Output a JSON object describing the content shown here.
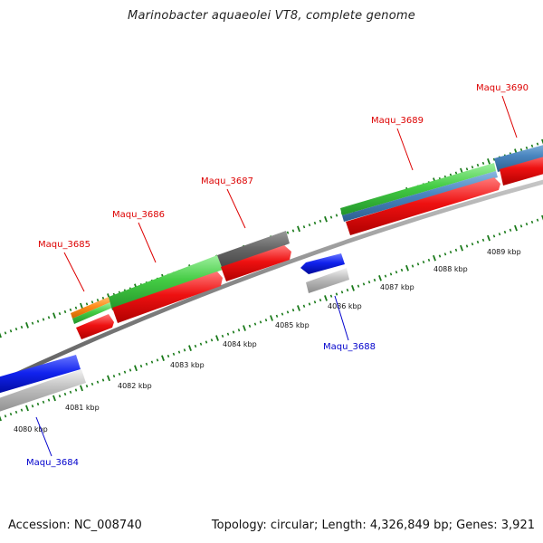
{
  "title": "Marinobacter aquaeolei VT8, complete genome",
  "footer": {
    "accession": "Accession: NC_008740",
    "summary": "Topology: circular; Length: 4,326,849 bp; Genes: 3,921"
  },
  "colors": {
    "forward_label": "#dd0000",
    "reverse_label": "#0000cc",
    "red": "#ee1111",
    "green": "#44cc44",
    "darkgray": "#666666",
    "steelblue": "#4a86c0",
    "orange": "#ff8c1a",
    "blue": "#1122ee",
    "lightgray": "#bbbbbb",
    "tick": "#1a7a1a",
    "backbone": "#888888"
  },
  "ticks": [
    {
      "kbp": 4080,
      "label": "4080 kbp"
    },
    {
      "kbp": 4081,
      "label": "4081 kbp"
    },
    {
      "kbp": 4082,
      "label": "4082 kbp"
    },
    {
      "kbp": 4083,
      "label": "4083 kbp"
    },
    {
      "kbp": 4084,
      "label": "4084 kbp"
    },
    {
      "kbp": 4085,
      "label": "4085 kbp"
    },
    {
      "kbp": 4086,
      "label": "4086 kbp"
    },
    {
      "kbp": 4087,
      "label": "4087 kbp"
    },
    {
      "kbp": 4088,
      "label": "4088 kbp"
    },
    {
      "kbp": 4089,
      "label": "4089 kbp"
    }
  ],
  "genes": [
    {
      "name": "Maqu_3684",
      "strand": "reverse"
    },
    {
      "name": "Maqu_3685",
      "strand": "forward"
    },
    {
      "name": "Maqu_3686",
      "strand": "forward"
    },
    {
      "name": "Maqu_3687",
      "strand": "forward"
    },
    {
      "name": "Maqu_3688",
      "strand": "reverse"
    },
    {
      "name": "Maqu_3689",
      "strand": "forward"
    },
    {
      "name": "Maqu_3690",
      "strand": "forward"
    }
  ]
}
